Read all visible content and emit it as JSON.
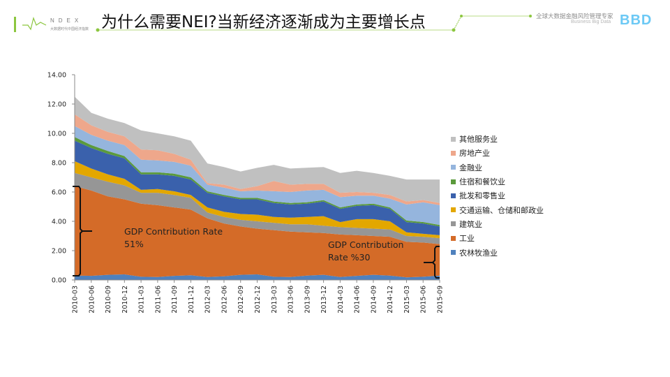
{
  "header": {
    "index_label": "NDEX",
    "index_sub": "大数据时代中国经济指数",
    "title": "为什么需要NEI?当新经济逐渐成为主要增长点",
    "brand_cn": "全球大数据金融风险管理专家",
    "brand_en": "Business Big Data",
    "brand_logo": "BBD",
    "accent_color": "#8cc63f",
    "brand_color": "#6cc9f5"
  },
  "annotations": {
    "left_line1": "GDP Contribution Rate",
    "left_line2": "51%",
    "right_line1": "GDP Contribution",
    "right_line2": "Rate %30"
  },
  "chart_data": {
    "type": "area",
    "stacked": true,
    "title": "",
    "xlabel": "",
    "ylabel": "",
    "ylim": [
      0,
      14
    ],
    "yticks": [
      "0.00",
      "2.00",
      "4.00",
      "6.00",
      "8.00",
      "10.00",
      "12.00",
      "14.00"
    ],
    "ytick_values": [
      0,
      2,
      4,
      6,
      8,
      10,
      12,
      14
    ],
    "grid": false,
    "legend_position": "right",
    "categories": [
      "2010-03",
      "2010-06",
      "2010-09",
      "2010-12",
      "2011-03",
      "2011-06",
      "2011-09",
      "2011-12",
      "2012-03",
      "2012-06",
      "2012-09",
      "2012-12",
      "2013-03",
      "2013-06",
      "2013-09",
      "2013-12",
      "2014-03",
      "2014-06",
      "2014-09",
      "2014-12",
      "2015-03",
      "2015-06",
      "2015-09"
    ],
    "series": [
      {
        "name": "农林牧渔业",
        "color": "#4f81bd",
        "values": [
          0.3,
          0.28,
          0.35,
          0.38,
          0.22,
          0.2,
          0.28,
          0.32,
          0.2,
          0.25,
          0.35,
          0.38,
          0.22,
          0.2,
          0.3,
          0.35,
          0.2,
          0.28,
          0.35,
          0.3,
          0.18,
          0.22,
          0.3
        ]
      },
      {
        "name": "工业",
        "color": "#d46b28",
        "values": [
          6.1,
          5.82,
          5.35,
          5.12,
          4.98,
          4.9,
          4.67,
          4.48,
          4.0,
          3.6,
          3.3,
          3.12,
          3.18,
          3.1,
          2.95,
          2.85,
          2.9,
          2.77,
          2.65,
          2.65,
          2.42,
          2.33,
          2.15
        ]
      },
      {
        "name": "建筑业",
        "color": "#969696",
        "values": [
          0.9,
          0.9,
          1.0,
          0.95,
          0.75,
          0.85,
          0.85,
          0.8,
          0.4,
          0.45,
          0.45,
          0.5,
          0.5,
          0.5,
          0.55,
          0.5,
          0.5,
          0.5,
          0.5,
          0.5,
          0.4,
          0.4,
          0.4
        ]
      },
      {
        "name": "交通运输、仓储和邮政业",
        "color": "#e3a700",
        "values": [
          0.8,
          0.6,
          0.5,
          0.45,
          0.2,
          0.25,
          0.25,
          0.2,
          0.35,
          0.35,
          0.4,
          0.45,
          0.4,
          0.45,
          0.5,
          0.65,
          0.35,
          0.6,
          0.65,
          0.55,
          0.25,
          0.2,
          0.2
        ]
      },
      {
        "name": "批发和零售业",
        "color": "#3a61ac",
        "values": [
          1.4,
          1.4,
          1.4,
          1.4,
          1.05,
          1.0,
          1.05,
          1.05,
          1.0,
          1.05,
          1.0,
          1.05,
          0.95,
          0.9,
          0.9,
          1.0,
          0.9,
          0.9,
          0.95,
          0.85,
          0.7,
          0.7,
          0.6
        ]
      },
      {
        "name": "住宿和餐饮业",
        "color": "#5b9a3c",
        "values": [
          0.25,
          0.2,
          0.2,
          0.15,
          0.15,
          0.15,
          0.15,
          0.15,
          0.1,
          0.1,
          0.1,
          0.1,
          0.1,
          0.1,
          0.1,
          0.1,
          0.1,
          0.1,
          0.1,
          0.1,
          0.1,
          0.1,
          0.1
        ]
      },
      {
        "name": "金融业",
        "color": "#95b5dd",
        "values": [
          0.75,
          0.7,
          0.7,
          0.75,
          0.85,
          0.8,
          0.8,
          0.8,
          0.45,
          0.5,
          0.45,
          0.5,
          0.7,
          0.75,
          0.8,
          0.7,
          0.7,
          0.6,
          0.55,
          0.6,
          1.1,
          1.35,
          1.35
        ]
      },
      {
        "name": "房地产业",
        "color": "#eea78b",
        "values": [
          0.8,
          0.65,
          0.6,
          0.6,
          0.7,
          0.7,
          0.55,
          0.4,
          0.1,
          0.2,
          0.15,
          0.3,
          0.7,
          0.5,
          0.45,
          0.4,
          0.3,
          0.25,
          0.2,
          0.25,
          0.2,
          0.15,
          0.15
        ]
      },
      {
        "name": "其他服务业",
        "color": "#c0c0c0",
        "values": [
          1.2,
          0.85,
          0.9,
          0.9,
          1.3,
          1.15,
          1.2,
          1.3,
          1.35,
          1.2,
          1.2,
          1.25,
          1.1,
          1.1,
          1.1,
          1.15,
          1.35,
          1.45,
          1.35,
          1.3,
          1.5,
          1.4,
          1.6
        ]
      }
    ]
  }
}
